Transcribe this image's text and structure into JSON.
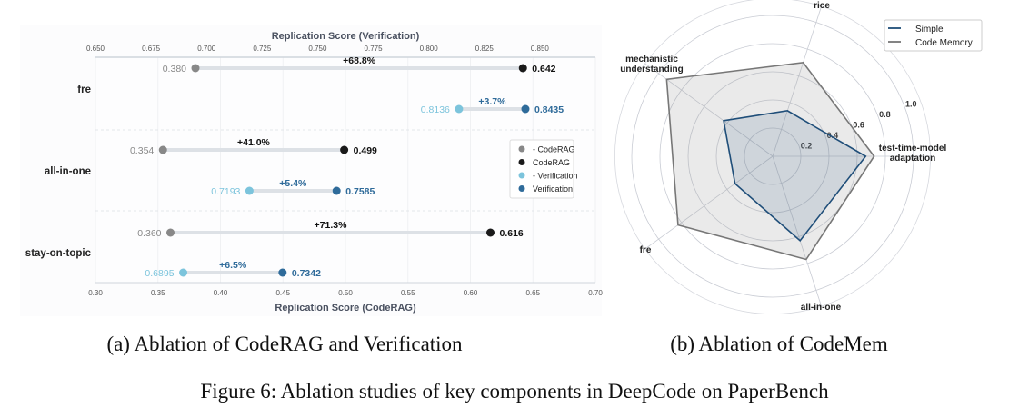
{
  "chart_data": [
    {
      "type": "dumbbell",
      "title": "",
      "xlabel_bottom": "Replication Score (CodeRAG)",
      "xlabel_top": "Replication Score (Verification)",
      "xlim_bottom": [
        0.3,
        0.7
      ],
      "xlim_top": [
        0.65,
        0.875
      ],
      "xticks_bottom": [
        "0.30",
        "0.35",
        "0.40",
        "0.45",
        "0.50",
        "0.55",
        "0.60",
        "0.65",
        "0.70"
      ],
      "xticks_top": [
        "0.650",
        "0.675",
        "0.700",
        "0.725",
        "0.750",
        "0.775",
        "0.800",
        "0.825",
        "0.850"
      ],
      "legend": [
        "- CodeRAG",
        "CodeRAG",
        "- Verification",
        "Verification"
      ],
      "legend_position": "right",
      "colors": {
        "no_coderag": "#888888",
        "coderag": "#1a1a1a",
        "no_verification": "#7cc4dc",
        "verification": "#2f6b9a",
        "line": "#dde1e6"
      },
      "categories": [
        "fre",
        "all-in-one",
        "stay-on-topic"
      ],
      "coderag": [
        {
          "without": 0.38,
          "with": 0.642,
          "without_label": "0.380",
          "with_label": "0.642",
          "gain": "+68.8%"
        },
        {
          "without": 0.354,
          "with": 0.499,
          "without_label": "0.354",
          "with_label": "0.499",
          "gain": "+41.0%"
        },
        {
          "without": 0.36,
          "with": 0.616,
          "without_label": "0.360",
          "with_label": "0.616",
          "gain": "+71.3%"
        }
      ],
      "verification": [
        {
          "without": 0.8136,
          "with": 0.8435,
          "without_label": "0.8136",
          "with_label": "0.8435",
          "gain": "+3.7%"
        },
        {
          "without": 0.7193,
          "with": 0.7585,
          "without_label": "0.7193",
          "with_label": "0.7585",
          "gain": "+5.4%"
        },
        {
          "without": 0.6895,
          "with": 0.7342,
          "without_label": "0.6895",
          "with_label": "0.7342",
          "gain": "+6.5%"
        }
      ]
    },
    {
      "type": "radar",
      "axes": [
        "test-time-model adaptation",
        "rice",
        "mechanistic understanding",
        "fre",
        "all-in-one"
      ],
      "axis_label_lines": [
        [
          "test-time-model",
          "adaptation"
        ],
        [
          "rice"
        ],
        [
          "mechanistic",
          "understanding"
        ],
        [
          "fre"
        ],
        [
          "all-in-one"
        ]
      ],
      "rlim": [
        0,
        1.0
      ],
      "rticks": [
        "0.2",
        "0.4",
        "0.6",
        "0.8",
        "1.0"
      ],
      "legend_position": "top-right",
      "series": [
        {
          "name": "Simple",
          "color": "#1f4e79",
          "values": [
            0.66,
            0.34,
            0.43,
            0.33,
            0.63
          ]
        },
        {
          "name": "Code Memory",
          "color": "#777777",
          "values": [
            0.72,
            0.7,
            0.93,
            0.83,
            0.77
          ]
        }
      ]
    }
  ],
  "captions": {
    "a": "(a) Ablation of CodeRAG and Verification",
    "b": "(b) Ablation of CodeMem",
    "figure": "Figure 6: Ablation studies of key components in DeepCode on PaperBench"
  }
}
